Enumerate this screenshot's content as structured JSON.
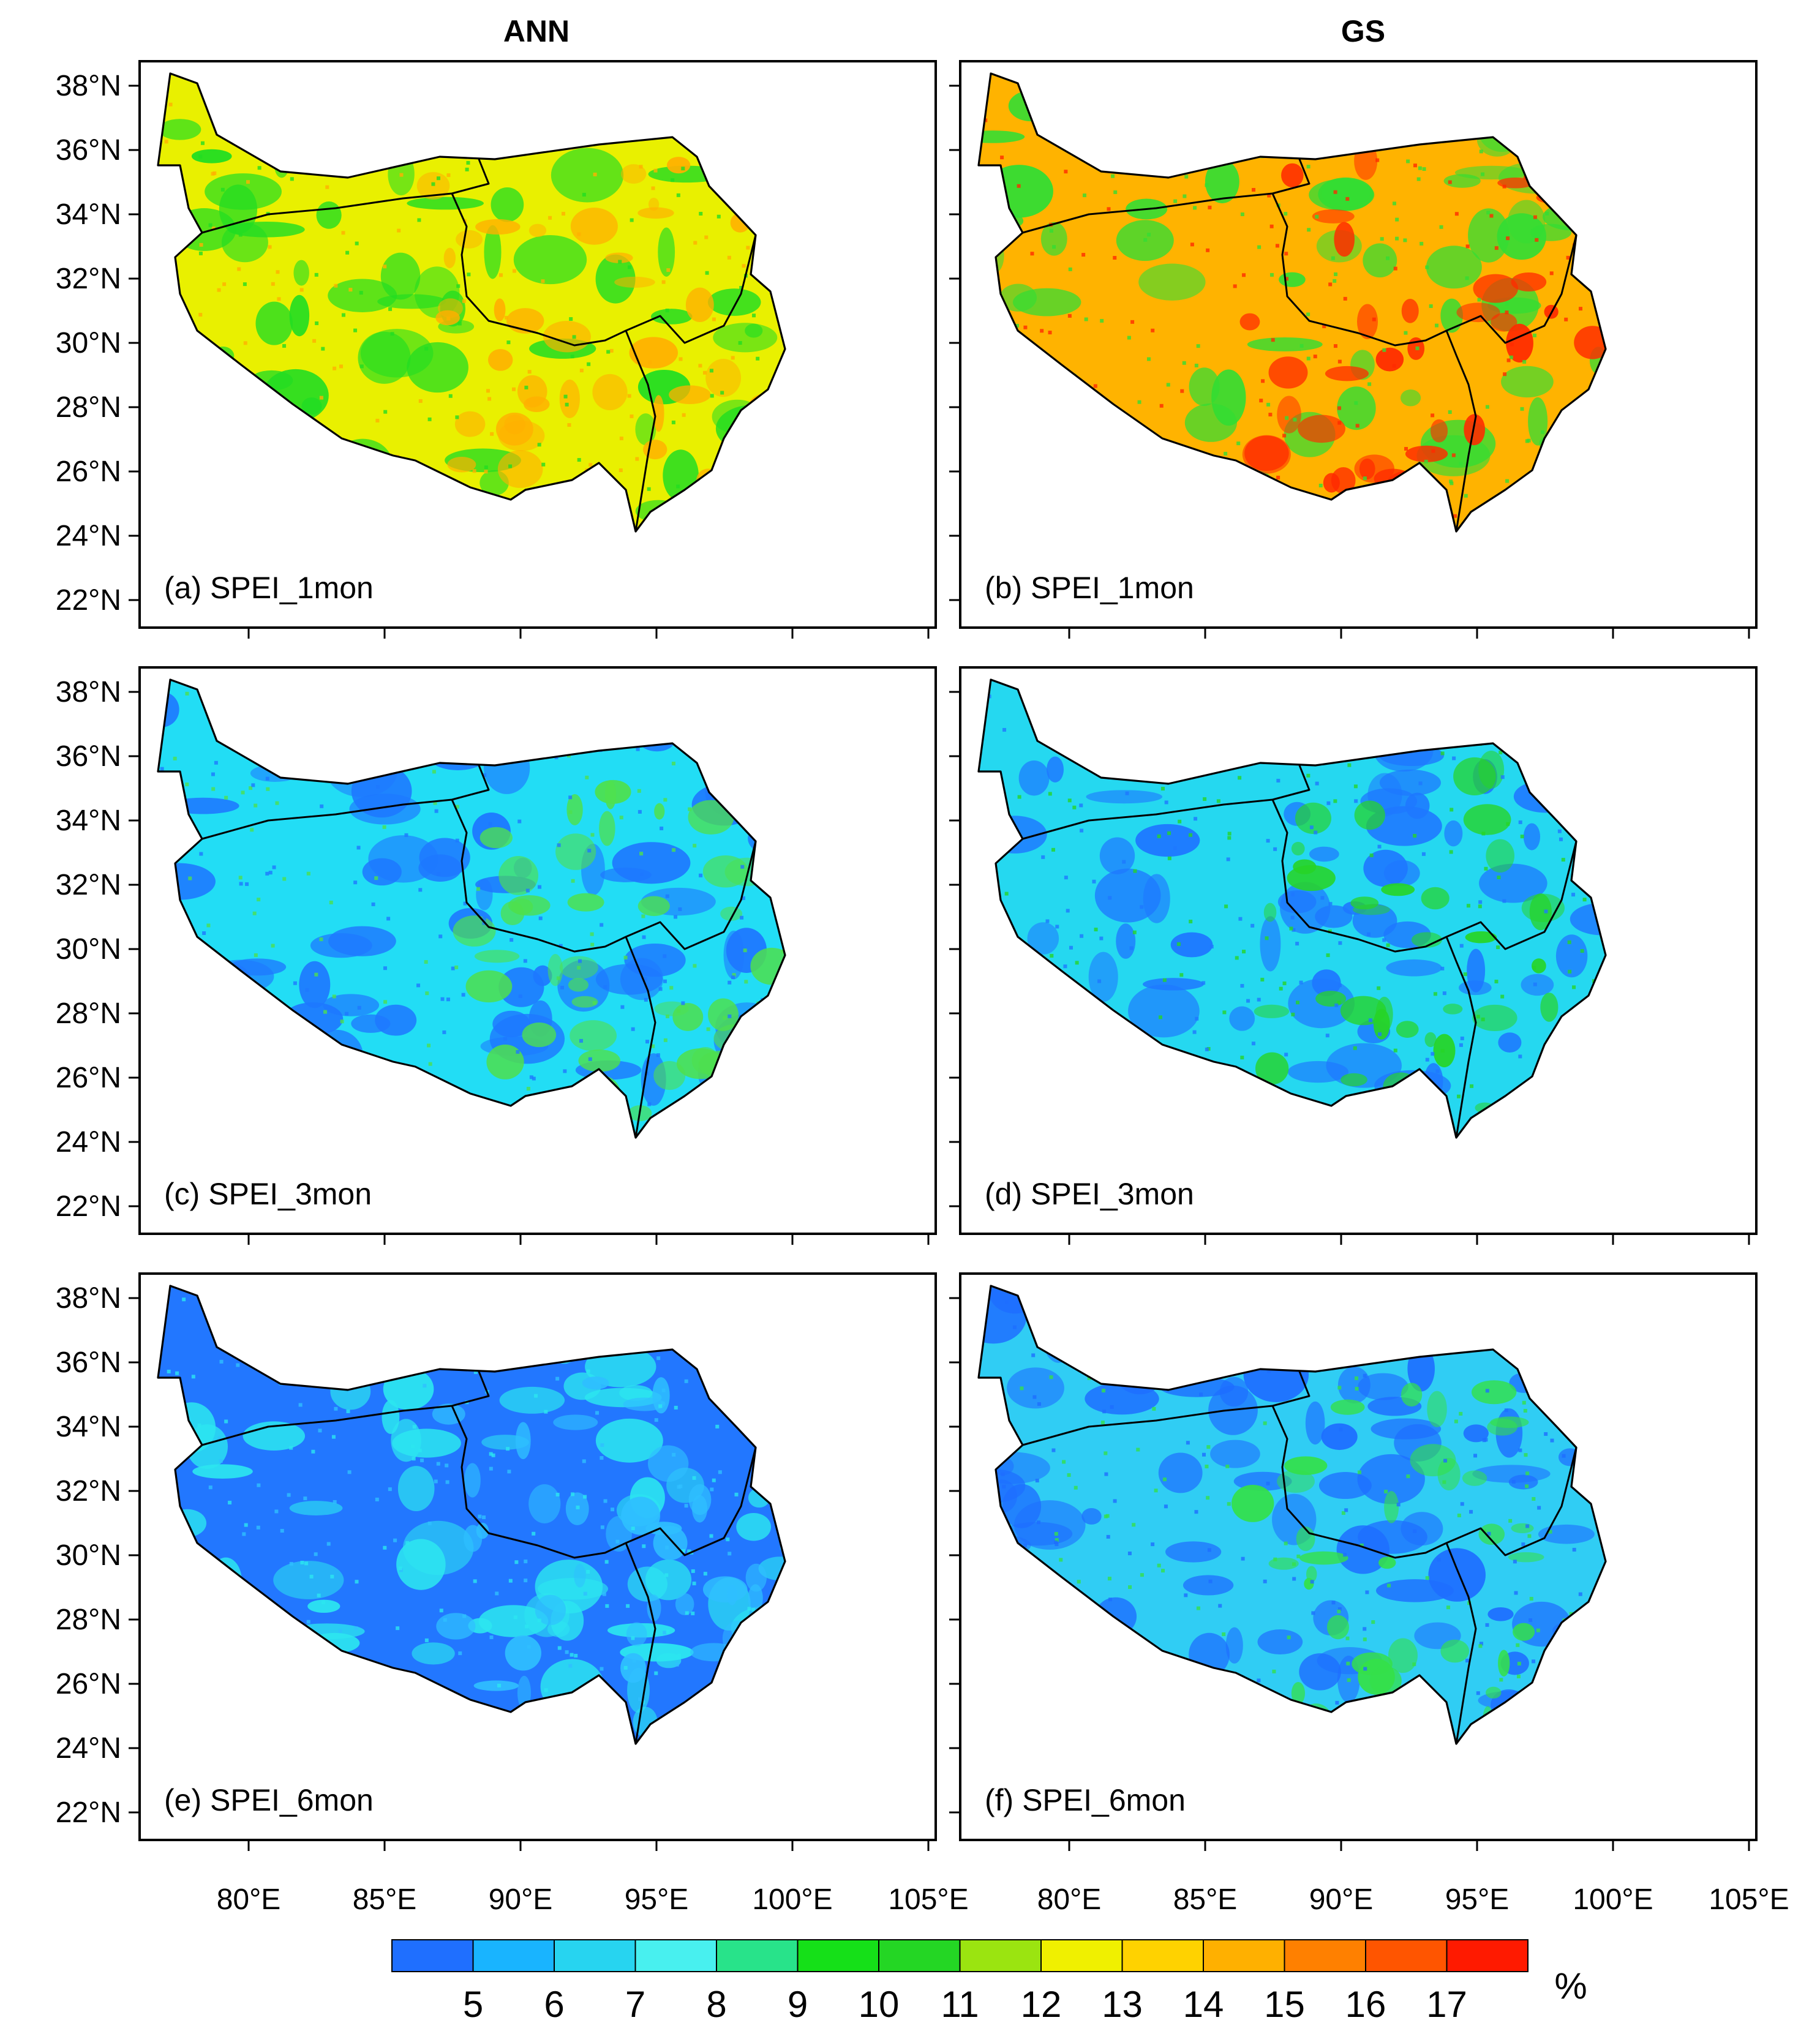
{
  "figure": {
    "columns": [
      "ANN",
      "GS"
    ],
    "latitude_ticks": [
      "38°N",
      "36°N",
      "34°N",
      "32°N",
      "30°N",
      "28°N",
      "26°N",
      "24°N",
      "22°N"
    ],
    "longitude_ticks": [
      "80°E",
      "85°E",
      "90°E",
      "95°E",
      "100°E",
      "105°E"
    ],
    "panels": [
      {
        "id": "a",
        "label": "(a) SPEI_1mon",
        "column": "ANN",
        "scale": "SPEI_1mon",
        "base_color": "#e9f000",
        "patch_color": "#22dd22",
        "hot_color": "#ffb000"
      },
      {
        "id": "b",
        "label": "(b) SPEI_1mon",
        "column": "GS",
        "scale": "SPEI_1mon",
        "base_color": "#ffb300",
        "patch_color": "#33dd33",
        "hot_color": "#ff2a00"
      },
      {
        "id": "c",
        "label": "(c) SPEI_3mon",
        "column": "ANN",
        "scale": "SPEI_3mon",
        "base_color": "#22ddf5",
        "patch_color": "#1e78ff",
        "hot_color": "#4ee04e"
      },
      {
        "id": "d",
        "label": "(d) SPEI_3mon",
        "column": "GS",
        "scale": "SPEI_3mon",
        "base_color": "#25d8f0",
        "patch_color": "#1e78ff",
        "hot_color": "#27d427"
      },
      {
        "id": "e",
        "label": "(e) SPEI_6mon",
        "column": "ANN",
        "scale": "SPEI_6mon",
        "base_color": "#2277ff",
        "patch_color": "#2ce6f0",
        "hot_color": "#2fbfff"
      },
      {
        "id": "f",
        "label": "(f) SPEI_6mon",
        "column": "GS",
        "scale": "SPEI_6mon",
        "base_color": "#30cdf4",
        "patch_color": "#1e6eff",
        "hot_color": "#34e04a"
      }
    ],
    "colorbar": {
      "unit": "%",
      "tick_labels": [
        "5",
        "6",
        "7",
        "8",
        "9",
        "10",
        "11",
        "12",
        "13",
        "14",
        "15",
        "16",
        "17"
      ],
      "colors": [
        "#1f6fff",
        "#19b4ff",
        "#27d4f0",
        "#48f0ef",
        "#28e38a",
        "#15e018",
        "#24d624",
        "#9be410",
        "#f0f000",
        "#ffd200",
        "#ffb000",
        "#ff8000",
        "#ff5500",
        "#ff1a00"
      ]
    }
  }
}
